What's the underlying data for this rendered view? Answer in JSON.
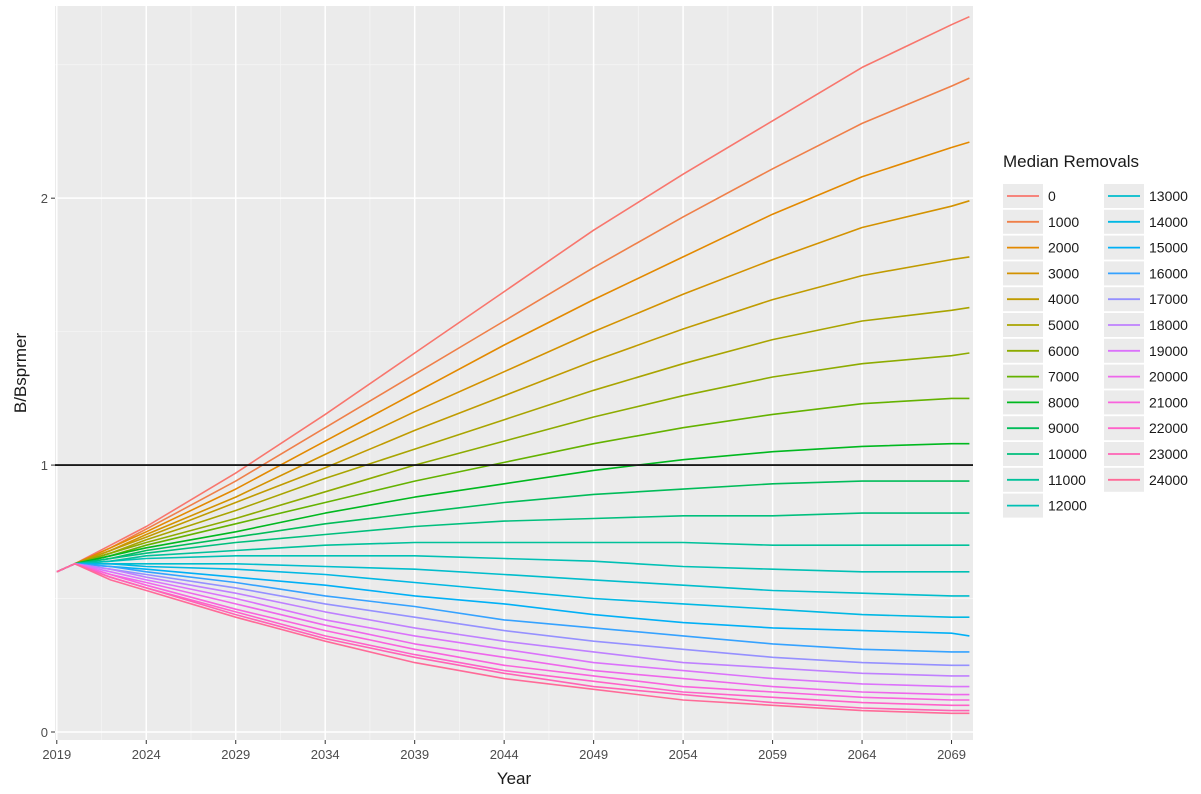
{
  "chart_data": {
    "type": "line",
    "title": "",
    "xlabel": "Year",
    "ylabel": "B/Bsprmer",
    "xlim": [
      2018.9,
      2070.2
    ],
    "ylim": [
      -0.03,
      2.72
    ],
    "x_ticks": [
      2019,
      2024,
      2029,
      2034,
      2039,
      2044,
      2049,
      2054,
      2059,
      2064,
      2069
    ],
    "y_ticks": [
      0,
      1,
      2
    ],
    "reference_line": 1,
    "grid": true,
    "legend": {
      "title": "Median Removals",
      "position": "right",
      "columns": 2
    },
    "x": [
      2019,
      2020,
      2022,
      2024,
      2029,
      2034,
      2039,
      2044,
      2049,
      2054,
      2059,
      2064,
      2069,
      2070
    ],
    "series": [
      {
        "name": "0",
        "color": "#F8766D",
        "values": [
          0.6,
          0.63,
          0.7,
          0.77,
          0.97,
          1.19,
          1.42,
          1.65,
          1.88,
          2.09,
          2.29,
          2.49,
          2.65,
          2.68
        ]
      },
      {
        "name": "1000",
        "color": "#EF7F49",
        "values": [
          0.6,
          0.63,
          0.69,
          0.76,
          0.94,
          1.14,
          1.34,
          1.54,
          1.74,
          1.93,
          2.11,
          2.28,
          2.42,
          2.45
        ]
      },
      {
        "name": "2000",
        "color": "#E38900",
        "values": [
          0.6,
          0.63,
          0.69,
          0.75,
          0.91,
          1.09,
          1.27,
          1.45,
          1.62,
          1.78,
          1.94,
          2.08,
          2.19,
          2.21
        ]
      },
      {
        "name": "3000",
        "color": "#D39200",
        "values": [
          0.6,
          0.63,
          0.68,
          0.74,
          0.88,
          1.04,
          1.2,
          1.35,
          1.5,
          1.64,
          1.77,
          1.89,
          1.97,
          1.99
        ]
      },
      {
        "name": "4000",
        "color": "#C09B00",
        "values": [
          0.6,
          0.63,
          0.68,
          0.73,
          0.86,
          0.99,
          1.13,
          1.26,
          1.39,
          1.51,
          1.62,
          1.71,
          1.77,
          1.78
        ]
      },
      {
        "name": "5000",
        "color": "#A9A400",
        "values": [
          0.6,
          0.63,
          0.67,
          0.72,
          0.83,
          0.95,
          1.06,
          1.17,
          1.28,
          1.38,
          1.47,
          1.54,
          1.58,
          1.59
        ]
      },
      {
        "name": "6000",
        "color": "#8DAB00",
        "values": [
          0.6,
          0.63,
          0.67,
          0.71,
          0.8,
          0.9,
          1.0,
          1.09,
          1.18,
          1.26,
          1.33,
          1.38,
          1.41,
          1.42
        ]
      },
      {
        "name": "7000",
        "color": "#64B200",
        "values": [
          0.6,
          0.63,
          0.66,
          0.7,
          0.78,
          0.86,
          0.94,
          1.01,
          1.08,
          1.14,
          1.19,
          1.23,
          1.25,
          1.25
        ]
      },
      {
        "name": "8000",
        "color": "#00B81F",
        "values": [
          0.6,
          0.63,
          0.66,
          0.69,
          0.75,
          0.82,
          0.88,
          0.93,
          0.98,
          1.02,
          1.05,
          1.07,
          1.08,
          1.08
        ]
      },
      {
        "name": "9000",
        "color": "#00BC59",
        "values": [
          0.6,
          0.63,
          0.65,
          0.68,
          0.73,
          0.78,
          0.82,
          0.86,
          0.89,
          0.91,
          0.93,
          0.94,
          0.94,
          0.94
        ]
      },
      {
        "name": "10000",
        "color": "#00BF7D",
        "values": [
          0.6,
          0.63,
          0.65,
          0.67,
          0.71,
          0.74,
          0.77,
          0.79,
          0.8,
          0.81,
          0.81,
          0.82,
          0.82,
          0.82
        ]
      },
      {
        "name": "11000",
        "color": "#00C19A",
        "values": [
          0.6,
          0.63,
          0.64,
          0.66,
          0.68,
          0.7,
          0.71,
          0.71,
          0.71,
          0.71,
          0.7,
          0.7,
          0.7,
          0.7
        ]
      },
      {
        "name": "12000",
        "color": "#00C0B4",
        "values": [
          0.6,
          0.63,
          0.64,
          0.65,
          0.66,
          0.66,
          0.66,
          0.65,
          0.64,
          0.62,
          0.61,
          0.6,
          0.6,
          0.6
        ]
      },
      {
        "name": "13000",
        "color": "#00BDCC",
        "values": [
          0.6,
          0.63,
          0.63,
          0.63,
          0.63,
          0.62,
          0.61,
          0.59,
          0.57,
          0.55,
          0.53,
          0.52,
          0.51,
          0.51
        ]
      },
      {
        "name": "14000",
        "color": "#00B8E3",
        "values": [
          0.6,
          0.63,
          0.63,
          0.62,
          0.61,
          0.59,
          0.56,
          0.53,
          0.5,
          0.48,
          0.46,
          0.44,
          0.43,
          0.43
        ]
      },
      {
        "name": "15000",
        "color": "#00B0F6",
        "values": [
          0.6,
          0.63,
          0.62,
          0.61,
          0.58,
          0.55,
          0.51,
          0.48,
          0.44,
          0.41,
          0.39,
          0.38,
          0.37,
          0.36
        ]
      },
      {
        "name": "16000",
        "color": "#35A2FF",
        "values": [
          0.6,
          0.63,
          0.62,
          0.6,
          0.56,
          0.51,
          0.47,
          0.42,
          0.39,
          0.36,
          0.33,
          0.31,
          0.3,
          0.3
        ]
      },
      {
        "name": "17000",
        "color": "#9590FF",
        "values": [
          0.6,
          0.63,
          0.61,
          0.59,
          0.54,
          0.48,
          0.43,
          0.38,
          0.34,
          0.31,
          0.28,
          0.26,
          0.25,
          0.25
        ]
      },
      {
        "name": "18000",
        "color": "#BF80FF",
        "values": [
          0.6,
          0.63,
          0.61,
          0.58,
          0.52,
          0.45,
          0.39,
          0.34,
          0.3,
          0.26,
          0.24,
          0.22,
          0.21,
          0.21
        ]
      },
      {
        "name": "19000",
        "color": "#DB72FB",
        "values": [
          0.6,
          0.63,
          0.6,
          0.57,
          0.5,
          0.42,
          0.36,
          0.31,
          0.26,
          0.23,
          0.2,
          0.18,
          0.17,
          0.17
        ]
      },
      {
        "name": "20000",
        "color": "#EE67EB",
        "values": [
          0.6,
          0.63,
          0.59,
          0.56,
          0.48,
          0.4,
          0.33,
          0.28,
          0.23,
          0.2,
          0.17,
          0.15,
          0.14,
          0.14
        ]
      },
      {
        "name": "21000",
        "color": "#F963DD",
        "values": [
          0.6,
          0.63,
          0.59,
          0.55,
          0.46,
          0.38,
          0.31,
          0.25,
          0.21,
          0.17,
          0.15,
          0.13,
          0.12,
          0.12
        ]
      },
      {
        "name": "22000",
        "color": "#FF61C9",
        "values": [
          0.6,
          0.63,
          0.58,
          0.54,
          0.45,
          0.36,
          0.29,
          0.23,
          0.19,
          0.15,
          0.13,
          0.11,
          0.1,
          0.1
        ]
      },
      {
        "name": "23000",
        "color": "#FF63B5",
        "values": [
          0.6,
          0.63,
          0.58,
          0.54,
          0.44,
          0.35,
          0.28,
          0.22,
          0.17,
          0.14,
          0.11,
          0.09,
          0.08,
          0.08
        ]
      },
      {
        "name": "24000",
        "color": "#FF6A98",
        "values": [
          0.6,
          0.63,
          0.57,
          0.53,
          0.43,
          0.34,
          0.26,
          0.2,
          0.16,
          0.12,
          0.1,
          0.08,
          0.07,
          0.07
        ]
      }
    ]
  }
}
